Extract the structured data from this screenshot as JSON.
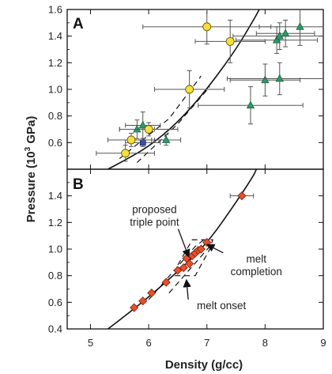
{
  "chart_data": {
    "type": "scatter",
    "xlabel": "Density (g/cc)",
    "ylabel": "Pressure (10³ GPa)",
    "ylabel_main": "Pressure (10",
    "ylabel_sup": "3",
    "ylabel_end": " GPa)",
    "xlim": [
      4.6,
      9.0
    ],
    "xticks": [
      "5",
      "6",
      "7",
      "8",
      "9"
    ],
    "panels": [
      {
        "label": "A",
        "ylim": [
          0.4,
          1.6
        ],
        "yticks": [
          "0.6",
          "0.8",
          "1.0",
          "1.2",
          "1.4",
          "1.6"
        ],
        "yellow_points": [
          {
            "x": 5.6,
            "y": 0.52,
            "xerr": 0.5,
            "yerr": 0.06
          },
          {
            "x": 5.7,
            "y": 0.62,
            "xerr": 0.4,
            "yerr": 0.05
          },
          {
            "x": 6.0,
            "y": 0.7,
            "xerr": 0.5,
            "yerr": 0.05
          },
          {
            "x": 6.7,
            "y": 1.0,
            "xerr": 0.6,
            "yerr": 0.14
          },
          {
            "x": 7.0,
            "y": 1.47,
            "xerr": 1.1,
            "yerr": 0.13
          },
          {
            "x": 7.4,
            "y": 1.36,
            "xerr": 0.6,
            "yerr": 0.16
          }
        ],
        "blue_points": [
          {
            "x": 5.9,
            "y": 0.6,
            "xerr": 0.3,
            "yerr": 0.03
          }
        ],
        "green_points": [
          {
            "x": 5.8,
            "y": 0.7,
            "xerr": 0.3,
            "yerr": 0.07
          },
          {
            "x": 5.9,
            "y": 0.73,
            "xerr": 0.3,
            "yerr": 0.1
          },
          {
            "x": 6.3,
            "y": 0.62,
            "xerr": 0.25,
            "yerr": 0.04
          },
          {
            "x": 7.75,
            "y": 0.88,
            "xerr": 0.9,
            "yerr": 0.14
          },
          {
            "x": 8.0,
            "y": 1.07,
            "xerr": 0.6,
            "yerr": 0.12
          },
          {
            "x": 8.25,
            "y": 1.08,
            "xerr": 0.9,
            "yerr": 0.12
          },
          {
            "x": 8.2,
            "y": 1.37,
            "xerr": 0.7,
            "yerr": 0.1
          },
          {
            "x": 8.25,
            "y": 1.4,
            "xerr": 0.8,
            "yerr": 0.1
          },
          {
            "x": 8.35,
            "y": 1.42,
            "xerr": 0.5,
            "yerr": 0.1
          },
          {
            "x": 8.6,
            "y": 1.47,
            "xerr": 0.7,
            "yerr": 0.14
          }
        ],
        "curve": [
          [
            5.3,
            0.4
          ],
          [
            5.6,
            0.47
          ],
          [
            6.0,
            0.57
          ],
          [
            6.5,
            0.75
          ],
          [
            7.0,
            1.0
          ],
          [
            7.5,
            1.3
          ],
          [
            7.8,
            1.52
          ],
          [
            7.9,
            1.6
          ]
        ],
        "dashed_lines": [
          [
            [
              5.5,
              0.48
            ],
            [
              6.35,
              0.78
            ],
            [
              6.9,
              1.1
            ]
          ],
          [
            [
              5.8,
              0.45
            ],
            [
              6.5,
              0.74
            ],
            [
              7.05,
              1.02
            ]
          ]
        ]
      },
      {
        "label": "B",
        "ylim": [
          0.4,
          1.6
        ],
        "yticks": [
          "0.4",
          "0.6",
          "0.8",
          "1.0",
          "1.2",
          "1.4"
        ],
        "red_points": [
          {
            "x": 5.75,
            "y": 0.56
          },
          {
            "x": 5.9,
            "y": 0.61
          },
          {
            "x": 6.05,
            "y": 0.67
          },
          {
            "x": 6.3,
            "y": 0.75
          },
          {
            "x": 6.5,
            "y": 0.84
          },
          {
            "x": 6.6,
            "y": 0.86
          },
          {
            "x": 6.65,
            "y": 0.93
          },
          {
            "x": 6.7,
            "y": 0.89
          },
          {
            "x": 6.75,
            "y": 0.95
          },
          {
            "x": 6.8,
            "y": 0.97
          },
          {
            "x": 6.85,
            "y": 0.99
          },
          {
            "x": 6.9,
            "y": 1.0
          },
          {
            "x": 7.0,
            "y": 1.05
          },
          {
            "x": 7.6,
            "y": 1.4,
            "xerr": 0.2
          }
        ],
        "curve": [
          [
            5.3,
            0.4
          ],
          [
            5.6,
            0.5
          ],
          [
            6.0,
            0.64
          ],
          [
            6.5,
            0.83
          ],
          [
            7.0,
            1.04
          ],
          [
            7.5,
            1.35
          ],
          [
            7.8,
            1.55
          ],
          [
            7.85,
            1.6
          ]
        ],
        "dashed_box": [
          [
            6.45,
            0.8
          ],
          [
            6.8,
            0.8
          ],
          [
            7.05,
            1.0
          ],
          [
            7.1,
            1.07
          ],
          [
            6.75,
            1.07
          ],
          [
            6.5,
            0.88
          ],
          [
            6.45,
            0.8
          ]
        ],
        "dashed_lines": [
          [
            [
              6.0,
              0.62
            ],
            [
              6.8,
              1.02
            ],
            [
              6.95,
              1.07
            ]
          ],
          [
            [
              6.35,
              0.67
            ],
            [
              7.05,
              1.02
            ]
          ]
        ],
        "annotations": [
          {
            "text_lines": [
              "proposed",
              "triple point"
            ],
            "anchor": [
              6.1,
              1.27
            ],
            "arrow_to": [
              6.68,
              0.95
            ]
          },
          {
            "text_lines": [
              "melt",
              "completion"
            ],
            "anchor": [
              7.85,
              0.9
            ],
            "arrow_to": [
              7.02,
              1.03
            ]
          },
          {
            "text_lines": [
              "melt onset"
            ],
            "anchor": [
              7.25,
              0.55
            ],
            "arrow_to": [
              6.65,
              0.76
            ]
          }
        ]
      }
    ],
    "colors": {
      "yellow": "#f5e03a",
      "blue": "#3a4fa8",
      "green": "#2a9a6a",
      "red": "#e8502a",
      "error": "#555555",
      "line": "#111111"
    }
  }
}
